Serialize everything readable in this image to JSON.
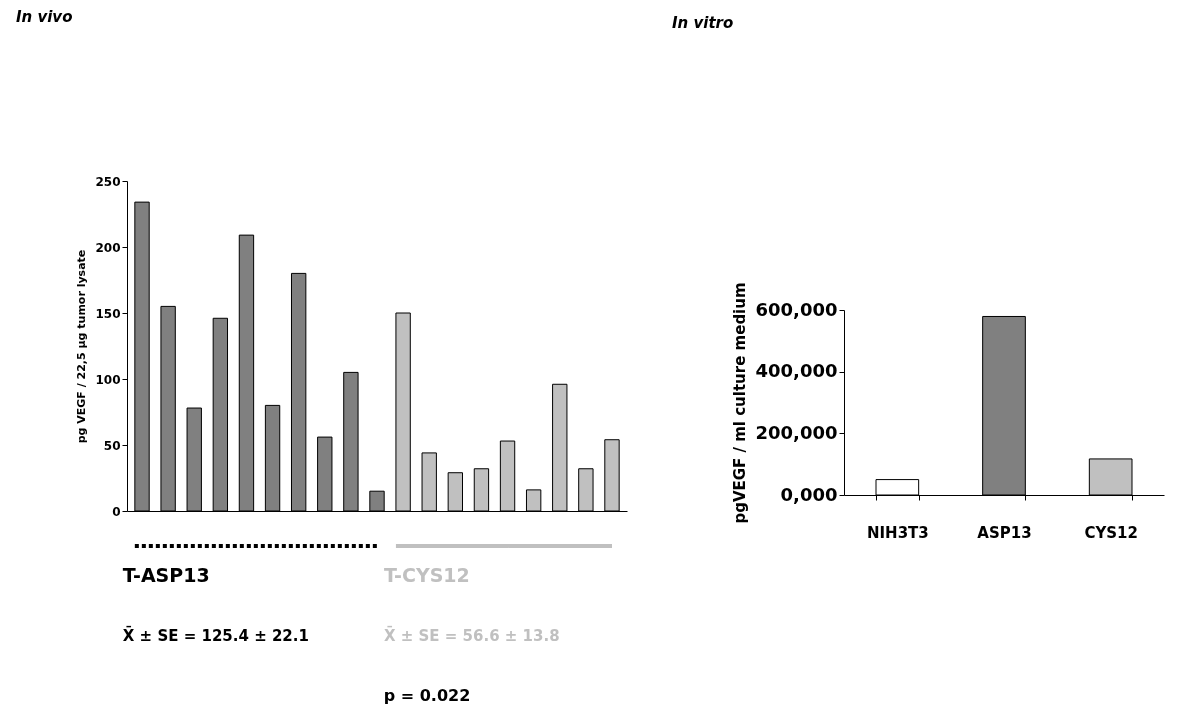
{
  "chart_data": [
    {
      "type": "bar",
      "title": "In vivo",
      "ylabel": "pg VEGF / 22,5 µg tumor lysate",
      "categories": [
        null,
        null,
        null,
        null,
        null,
        null,
        null,
        null,
        null,
        null,
        null,
        null,
        null,
        null,
        null,
        null,
        null,
        null,
        null
      ],
      "series": [
        {
          "name": "T-ASP13",
          "color": "#808080",
          "line_style": "dotted",
          "values": [
            234,
            155,
            78,
            146,
            209,
            80,
            180,
            56,
            105,
            15,
            null,
            null,
            null,
            null,
            null,
            null,
            null,
            null,
            null
          ]
        },
        {
          "name": "T-CYS12",
          "color": "#c0c0c0",
          "line_style": "solid",
          "values": [
            null,
            null,
            null,
            null,
            null,
            null,
            null,
            null,
            null,
            null,
            150,
            44,
            29,
            32,
            53,
            16,
            96,
            32,
            54
          ]
        }
      ],
      "ylim": [
        0,
        250
      ],
      "yticks": [
        0,
        50,
        100,
        150,
        200,
        250
      ],
      "tick_labels": "y",
      "grid": false,
      "annotations": [
        "X̄ ± SE = 125.4 ± 22.1",
        "X̄ ± SE = 56.6 ± 13.8",
        "p = 0.022"
      ]
    },
    {
      "type": "bar",
      "title": "In vitro",
      "ylabel": "pgVEGF / ml culture medium",
      "categories": [
        "NIH3T3",
        "ASP13",
        "CYS12"
      ],
      "values": [
        50000,
        579000,
        117000
      ],
      "colors": [
        "#ffffff",
        "#808080",
        "#c0c0c0"
      ],
      "ylim": [
        0,
        600000
      ],
      "yticks": [
        {
          "value": 0,
          "label": "0,000"
        },
        {
          "value": 200000,
          "label": "200,000"
        },
        {
          "value": 400000,
          "label": "400,000"
        },
        {
          "value": 600000,
          "label": "600,000"
        }
      ],
      "grid": false
    }
  ]
}
